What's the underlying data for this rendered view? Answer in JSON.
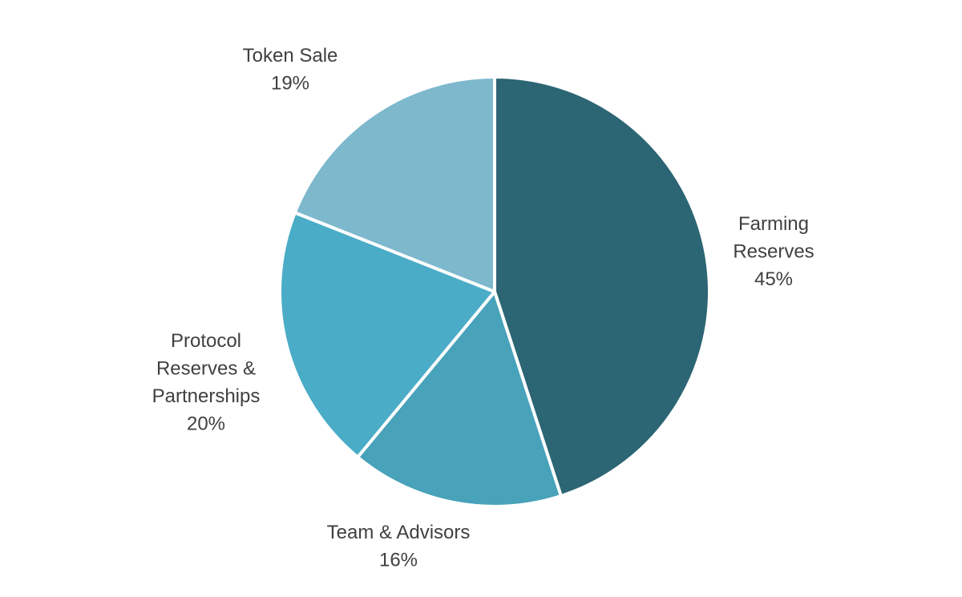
{
  "chart_data": {
    "type": "pie",
    "title": "",
    "start_angle_deg": 0,
    "direction": "clockwise",
    "slices": [
      {
        "name": "Farming Reserves",
        "label_lines": [
          "Farming",
          "Reserves"
        ],
        "value": 45,
        "value_label": "45%",
        "color": "#2c6573"
      },
      {
        "name": "Team & Advisors",
        "label_lines": [
          "Team & Advisors"
        ],
        "value": 16,
        "value_label": "16%",
        "color": "#47a2ba"
      },
      {
        "name": "Protocol Reserves & Partnerships",
        "label_lines": [
          "Protocol",
          "Reserves &",
          "Partnerships"
        ],
        "value": 20,
        "value_label": "20%",
        "color": "#4aacc7"
      },
      {
        "name": "Token Sale",
        "label_lines": [
          "Token Sale"
        ],
        "value": 19,
        "value_label": "19%",
        "color": "#7db8cd"
      }
    ],
    "separator_color": "#ffffff",
    "legend": "none"
  }
}
